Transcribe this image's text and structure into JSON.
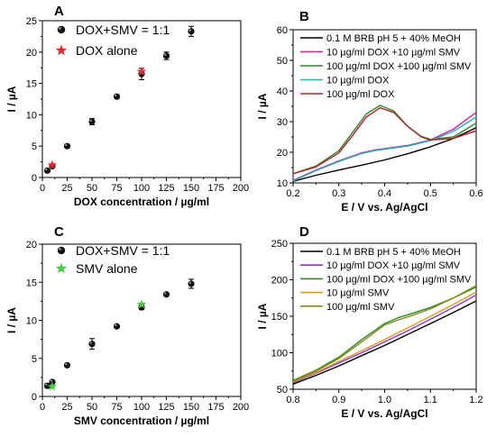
{
  "chart_data": [
    {
      "panel": "A",
      "type": "scatter",
      "xlabel": "DOX concentration / µg/ml",
      "ylabel": "I / µA",
      "xlim": [
        0,
        200
      ],
      "ylim": [
        0,
        25
      ],
      "xticks": [
        "0",
        "25",
        "50",
        "75",
        "100",
        "125",
        "150",
        "175",
        "200"
      ],
      "yticks": [
        "0",
        "5",
        "10",
        "15",
        "20",
        "25"
      ],
      "legend_position": "top-left",
      "series": [
        {
          "name": "DOX+SMV = 1:1",
          "marker": "sphere",
          "color": "#000000",
          "x": [
            5,
            10,
            25,
            50,
            75,
            100,
            125,
            150
          ],
          "y": [
            1.1,
            1.8,
            5.0,
            8.9,
            12.9,
            16.5,
            19.4,
            23.3
          ],
          "err": [
            0.1,
            0.2,
            0.3,
            0.5,
            0.3,
            0.9,
            0.6,
            0.8
          ]
        },
        {
          "name": "DOX alone",
          "marker": "star",
          "color": "#e8282b",
          "x": [
            10,
            100
          ],
          "y": [
            2.0,
            16.9
          ]
        }
      ]
    },
    {
      "panel": "B",
      "type": "line",
      "xlabel": "E / V vs. Ag/AgCl",
      "ylabel": "I / µA",
      "xlim": [
        0.2,
        0.6
      ],
      "ylim": [
        10,
        60
      ],
      "xticks": [
        "0.2",
        "0.3",
        "0.4",
        "0.5",
        "0.6"
      ],
      "yticks": [
        "10",
        "20",
        "30",
        "40",
        "50",
        "60"
      ],
      "legend_position": "top",
      "series": [
        {
          "name": "0.1 M BRB pH 5 + 40% MeOH",
          "color": "#000000",
          "x": [
            0.2,
            0.25,
            0.3,
            0.35,
            0.4,
            0.45,
            0.5,
            0.55,
            0.6
          ],
          "y": [
            10.5,
            12.5,
            14.2,
            15.8,
            17.5,
            19.5,
            21.8,
            24.5,
            28.0
          ]
        },
        {
          "name": "10 µg/ml DOX +10 µg/ml SMV",
          "color": "#e0189b",
          "x": [
            0.2,
            0.25,
            0.3,
            0.35,
            0.38,
            0.4,
            0.45,
            0.5,
            0.55,
            0.6
          ],
          "y": [
            10.8,
            14.2,
            17.2,
            19.8,
            20.8,
            21.2,
            22.2,
            24.0,
            27.5,
            33.0
          ]
        },
        {
          "name": "100 µg/ml DOX +100 µg/ml SMV",
          "color": "#2a8c2a",
          "x": [
            0.2,
            0.25,
            0.3,
            0.33,
            0.36,
            0.39,
            0.42,
            0.45,
            0.48,
            0.5,
            0.55,
            0.6
          ],
          "y": [
            13.0,
            15.5,
            20.5,
            26.5,
            32.5,
            35.3,
            33.5,
            28.5,
            25.2,
            24.2,
            25.0,
            29.5
          ]
        },
        {
          "name": "10 µg/ml DOX",
          "color": "#1fb5b5",
          "x": [
            0.2,
            0.25,
            0.3,
            0.35,
            0.38,
            0.4,
            0.45,
            0.5,
            0.55,
            0.6
          ],
          "y": [
            10.6,
            14.0,
            17.0,
            19.6,
            20.6,
            21.0,
            22.0,
            23.8,
            26.8,
            31.5
          ]
        },
        {
          "name": "100 µg/ml DOX",
          "color": "#b3202a",
          "x": [
            0.2,
            0.25,
            0.3,
            0.33,
            0.36,
            0.39,
            0.42,
            0.45,
            0.48,
            0.5,
            0.55,
            0.6
          ],
          "y": [
            13.0,
            15.2,
            19.8,
            25.5,
            31.5,
            34.5,
            33.0,
            28.5,
            25.0,
            24.0,
            24.5,
            27.0
          ]
        }
      ]
    },
    {
      "panel": "C",
      "type": "scatter",
      "xlabel": "SMV concentration / µg/ml",
      "ylabel": "I / µA",
      "xlim": [
        0,
        200
      ],
      "ylim": [
        0,
        20
      ],
      "xticks": [
        "0",
        "25",
        "50",
        "75",
        "100",
        "125",
        "150",
        "175",
        "200"
      ],
      "yticks": [
        "0",
        "5",
        "10",
        "15",
        "20"
      ],
      "legend_position": "top-left",
      "series": [
        {
          "name": "DOX+SMV = 1:1",
          "marker": "sphere",
          "color": "#000000",
          "x": [
            5,
            10,
            25,
            50,
            75,
            100,
            125,
            150
          ],
          "y": [
            1.4,
            1.9,
            4.1,
            6.9,
            9.2,
            11.7,
            13.4,
            14.8
          ],
          "err": [
            0.3,
            0.2,
            0.2,
            0.7,
            0.2,
            0.3,
            0.2,
            0.6
          ]
        },
        {
          "name": "SMV alone",
          "marker": "star",
          "color": "#44d03c",
          "x": [
            10,
            100
          ],
          "y": [
            1.3,
            12.1
          ]
        }
      ]
    },
    {
      "panel": "D",
      "type": "line",
      "xlabel": "E / V vs. Ag/AgCl",
      "ylabel": "I / µA",
      "xlim": [
        0.8,
        1.2
      ],
      "ylim": [
        50,
        250
      ],
      "xticks": [
        "0.8",
        "0.9",
        "1.0",
        "1.1",
        "1.2"
      ],
      "yticks": [
        "50",
        "100",
        "150",
        "200",
        "250"
      ],
      "legend_position": "top",
      "series": [
        {
          "name": "0.1 M BRB pH 5 + 40% MeOH",
          "color": "#000000",
          "x": [
            0.8,
            0.85,
            0.9,
            0.95,
            1.0,
            1.05,
            1.1,
            1.15,
            1.2
          ],
          "y": [
            57,
            69,
            82,
            96,
            110,
            125,
            140,
            155,
            171
          ]
        },
        {
          "name": "10 µg/ml DOX +10 µg/ml SMV",
          "color": "#9b30c8",
          "x": [
            0.8,
            0.85,
            0.9,
            0.95,
            1.0,
            1.05,
            1.1,
            1.15,
            1.2
          ],
          "y": [
            59,
            72,
            86,
            100,
            115,
            130,
            146,
            162,
            179
          ]
        },
        {
          "name": "100 µg/ml DOX +100 µg/ml SMV",
          "color": "#2a8c2a",
          "x": [
            0.8,
            0.85,
            0.9,
            0.95,
            1.0,
            1.03,
            1.05,
            1.1,
            1.15,
            1.2
          ],
          "y": [
            62,
            76,
            94,
            118,
            140,
            148,
            152,
            162,
            175,
            190
          ]
        },
        {
          "name": "10 µg/ml SMV",
          "color": "#d4a017",
          "x": [
            0.8,
            0.85,
            0.9,
            0.95,
            1.0,
            1.05,
            1.1,
            1.15,
            1.2
          ],
          "y": [
            60,
            73,
            88,
            103,
            118,
            134,
            150,
            166,
            183
          ]
        },
        {
          "name": "100 µg/ml SMV",
          "color": "#8a8a1a",
          "x": [
            0.8,
            0.85,
            0.9,
            0.95,
            1.0,
            1.03,
            1.05,
            1.1,
            1.15,
            1.2
          ],
          "y": [
            61,
            75,
            92,
            115,
            138,
            145,
            149,
            160,
            175,
            192
          ]
        }
      ]
    }
  ]
}
